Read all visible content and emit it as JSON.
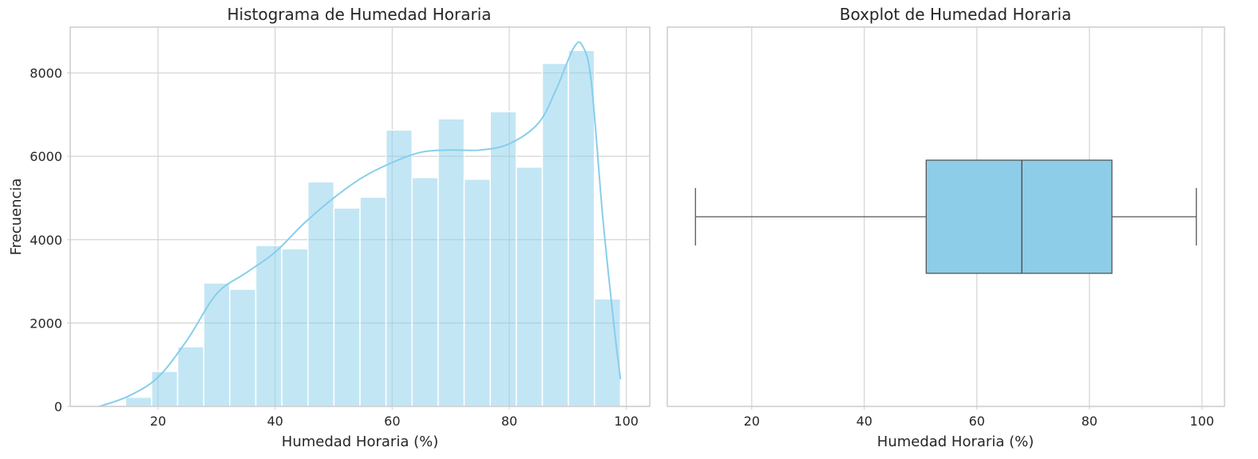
{
  "chart_data": [
    {
      "type": "histogram",
      "title": "Histograma de Humedad Horaria",
      "xlabel": "Humedad Horaria (%)",
      "ylabel": "Frecuencia",
      "xlim": [
        5,
        104
      ],
      "ylim": [
        0,
        9100
      ],
      "xticks": [
        20,
        40,
        60,
        80,
        100
      ],
      "yticks": [
        0,
        2000,
        4000,
        6000,
        8000
      ],
      "grid": true,
      "bin_edges": [
        10,
        14.45,
        18.9,
        23.35,
        27.8,
        32.25,
        36.7,
        41.15,
        45.6,
        50.05,
        54.5,
        58.95,
        63.4,
        67.85,
        72.3,
        76.75,
        81.2,
        85.65,
        90.1,
        94.55,
        99
      ],
      "values": [
        0,
        220,
        840,
        1430,
        2960,
        2810,
        3860,
        3780,
        5390,
        4760,
        5020,
        6630,
        5490,
        6900,
        5450,
        7070,
        5740,
        8230,
        8540,
        2580
      ],
      "kde": {
        "x": [
          10,
          15,
          20,
          25,
          30,
          35,
          40,
          45,
          50,
          55,
          60,
          65,
          70,
          75,
          80,
          85,
          88,
          91,
          92.5,
          94,
          96,
          98,
          99
        ],
        "y": [
          0,
          250,
          700,
          1600,
          2700,
          3200,
          3700,
          4400,
          5000,
          5500,
          5850,
          6100,
          6150,
          6150,
          6300,
          6800,
          7600,
          8600,
          8650,
          7800,
          4500,
          1800,
          650
        ]
      },
      "colors": {
        "bars": "#87ceeb",
        "kde": "#87ceeb"
      }
    },
    {
      "type": "boxplot",
      "title": "Boxplot de Humedad Horaria",
      "xlabel": "Humedad Horaria (%)",
      "xlim": [
        5,
        104
      ],
      "xticks": [
        20,
        40,
        60,
        80,
        100
      ],
      "grid": true,
      "whisker_low": 10,
      "q1": 51,
      "median": 68,
      "q3": 84,
      "whisker_high": 99,
      "colors": {
        "box": "#8ecde8",
        "lines": "#555555"
      }
    }
  ]
}
